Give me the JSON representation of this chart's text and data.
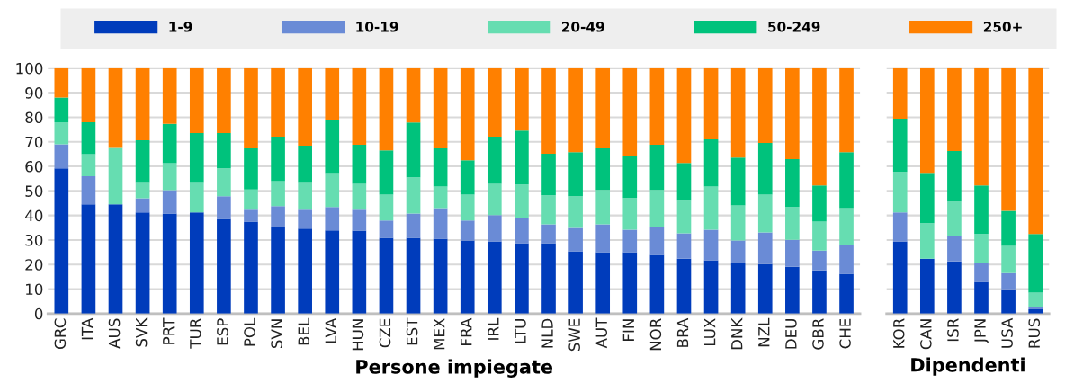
{
  "chart_data": [
    {
      "type": "bar",
      "stacked": true,
      "xlabel": "Persone impiegate",
      "legend": "top",
      "grid": "y",
      "ylim": [
        0,
        100
      ],
      "yticks": [
        0,
        10,
        20,
        30,
        40,
        50,
        60,
        70,
        80,
        90,
        100
      ],
      "categories": [
        "GRC",
        "ITA",
        "AUS",
        "SVK",
        "PRT",
        "TUR",
        "ESP",
        "POL",
        "SVN",
        "BEL",
        "LVA",
        "HUN",
        "CZE",
        "EST",
        "MEX",
        "FRA",
        "IRL",
        "LTU",
        "NLD",
        "SWE",
        "AUT",
        "FIN",
        "NOR",
        "BRA",
        "LUX",
        "DNK",
        "NZL",
        "DEU",
        "GBR",
        "CHE"
      ],
      "series": [
        {
          "name": "1-9",
          "color": "#003cbb",
          "values": [
            59.2,
            44.5,
            44.5,
            41.2,
            40.8,
            41.2,
            38.6,
            37.5,
            35.3,
            34.6,
            33.9,
            33.8,
            30.9,
            30.9,
            30.5,
            29.8,
            29.4,
            28.7,
            28.7,
            25.4,
            25.0,
            25.0,
            23.9,
            22.4,
            21.7,
            20.6,
            20.2,
            19.1,
            17.6,
            16.2
          ]
        },
        {
          "name": "10-19",
          "color": "#6a8bd6",
          "values": [
            9.8,
            11.5,
            null,
            5.8,
            9.5,
            null,
            9.2,
            4.8,
            8.5,
            7.7,
            9.5,
            8.5,
            7.0,
            9.9,
            12.5,
            8.1,
            10.7,
            10.3,
            7.7,
            9.5,
            11.4,
            9.2,
            11.4,
            10.3,
            12.5,
            9.2,
            12.9,
            11.0,
            8.1,
            11.7
          ]
        },
        {
          "name": "20-49",
          "color": "#66ddb1",
          "values": [
            9.0,
            9.0,
            23.0,
            6.6,
            11.0,
            12.4,
            11.4,
            8.3,
            10.2,
            11.3,
            13.9,
            10.6,
            10.6,
            14.7,
            8.8,
            10.6,
            12.8,
            13.6,
            11.8,
            12.9,
            14.0,
            12.9,
            15.1,
            13.3,
            17.6,
            14.3,
            15.4,
            13.3,
            11.8,
            15.1
          ]
        },
        {
          "name": "50-249",
          "color": "#00c27c",
          "values": [
            10.0,
            13.0,
            null,
            17.0,
            16.0,
            20.0,
            14.4,
            16.7,
            18.1,
            14.8,
            21.5,
            15.9,
            18.0,
            22.4,
            15.5,
            14.0,
            19.2,
            22.0,
            16.9,
            18.0,
            16.9,
            17.2,
            18.4,
            15.4,
            19.2,
            19.5,
            21.0,
            19.5,
            14.7,
            22.8
          ]
        },
        {
          "name": "250+",
          "color": "#ff8000",
          "values": [
            12.0,
            22.0,
            32.5,
            29.4,
            22.7,
            26.4,
            26.4,
            32.7,
            27.9,
            31.6,
            21.2,
            31.2,
            33.5,
            22.1,
            32.7,
            37.5,
            27.9,
            25.4,
            34.9,
            34.2,
            32.7,
            35.7,
            31.2,
            38.6,
            29.0,
            36.4,
            30.5,
            37.1,
            47.8,
            34.2
          ]
        }
      ]
    },
    {
      "type": "bar",
      "stacked": true,
      "xlabel": "Dipendenti",
      "grid": "y",
      "tick_labels": "x",
      "ylim": [
        0,
        100
      ],
      "yticks": [
        0,
        10,
        20,
        30,
        40,
        50,
        60,
        70,
        80,
        90,
        100
      ],
      "categories": [
        "KOR",
        "CAN",
        "ISR",
        "JPN",
        "USA",
        "RUS"
      ],
      "series": [
        {
          "color": "#003cbb",
          "values": [
            29.4,
            22.4,
            21.3,
            12.9,
            9.9,
            1.8
          ]
        },
        {
          "color": "#6a8bd6",
          "values": [
            11.8,
            null,
            10.3,
            7.7,
            6.6,
            1.1
          ]
        },
        {
          "color": "#66ddb1",
          "values": [
            16.5,
            14.4,
            14.0,
            11.8,
            11.1,
            5.6
          ]
        },
        {
          "color": "#00c27c",
          "values": [
            21.7,
            20.6,
            20.6,
            19.8,
            14.3,
            23.9
          ]
        },
        {
          "color": "#ff8000",
          "values": [
            20.6,
            42.6,
            33.8,
            47.8,
            58.1,
            67.6
          ]
        }
      ]
    }
  ]
}
